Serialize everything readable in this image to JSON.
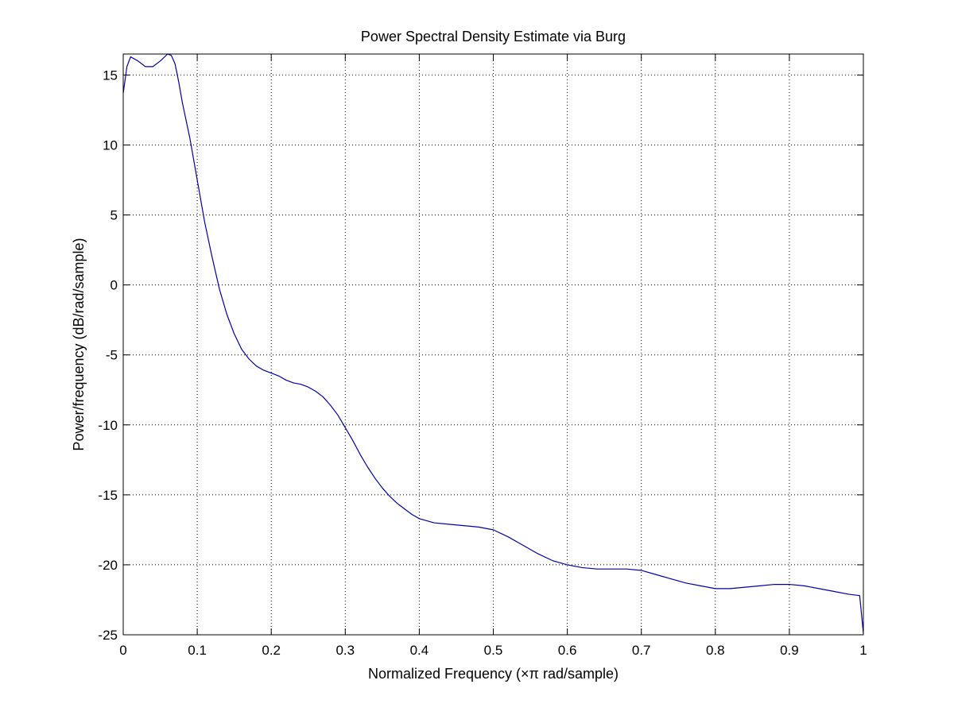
{
  "chart_data": {
    "type": "line",
    "title": "Power Spectral Density Estimate via Burg",
    "xlabel": "Normalized Frequency  (×π rad/sample)",
    "ylabel": "Power/frequency (dB/rad/sample)",
    "xlim": [
      0,
      1
    ],
    "ylim": [
      -25,
      16.5
    ],
    "xticks": [
      0,
      0.1,
      0.2,
      0.3,
      0.4,
      0.5,
      0.6,
      0.7,
      0.8,
      0.9,
      1
    ],
    "xtick_labels": [
      "0",
      "0.1",
      "0.2",
      "0.3",
      "0.4",
      "0.5",
      "0.6",
      "0.7",
      "0.8",
      "0.9",
      "1"
    ],
    "yticks": [
      -25,
      -20,
      -15,
      -10,
      -5,
      0,
      5,
      10,
      15
    ],
    "ytick_labels": [
      "-25",
      "-20",
      "-15",
      "-10",
      "-5",
      "0",
      "5",
      "10",
      "15"
    ],
    "grid": true,
    "grid_style": "dotted",
    "line_color": "#0000aa",
    "series": [
      {
        "x": [
          0,
          0.005,
          0.01,
          0.02,
          0.03,
          0.04,
          0.05,
          0.06,
          0.065,
          0.07,
          0.075,
          0.08,
          0.09,
          0.1,
          0.11,
          0.12,
          0.13,
          0.14,
          0.15,
          0.16,
          0.17,
          0.18,
          0.19,
          0.2,
          0.21,
          0.22,
          0.23,
          0.24,
          0.25,
          0.26,
          0.27,
          0.28,
          0.29,
          0.3,
          0.31,
          0.32,
          0.33,
          0.34,
          0.35,
          0.36,
          0.37,
          0.38,
          0.39,
          0.4,
          0.42,
          0.44,
          0.46,
          0.48,
          0.5,
          0.52,
          0.54,
          0.56,
          0.58,
          0.6,
          0.62,
          0.64,
          0.66,
          0.68,
          0.7,
          0.72,
          0.74,
          0.76,
          0.78,
          0.8,
          0.82,
          0.84,
          0.86,
          0.88,
          0.9,
          0.92,
          0.94,
          0.96,
          0.98,
          0.995,
          1
        ],
        "y": [
          13.7,
          15.6,
          16.3,
          16.0,
          15.6,
          15.6,
          16.0,
          16.5,
          16.4,
          15.8,
          14.5,
          13.0,
          10.5,
          7.5,
          4.5,
          2.0,
          -0.3,
          -2.1,
          -3.5,
          -4.6,
          -5.3,
          -5.8,
          -6.1,
          -6.3,
          -6.5,
          -6.8,
          -7.0,
          -7.1,
          -7.3,
          -7.6,
          -8.0,
          -8.6,
          -9.3,
          -10.2,
          -11.1,
          -12.1,
          -13.0,
          -13.8,
          -14.5,
          -15.1,
          -15.6,
          -16.0,
          -16.4,
          -16.7,
          -17.0,
          -17.1,
          -17.2,
          -17.3,
          -17.5,
          -18.0,
          -18.6,
          -19.2,
          -19.7,
          -20.0,
          -20.2,
          -20.3,
          -20.3,
          -20.3,
          -20.4,
          -20.7,
          -21.0,
          -21.3,
          -21.5,
          -21.7,
          -21.7,
          -21.6,
          -21.5,
          -21.4,
          -21.4,
          -21.5,
          -21.7,
          -21.9,
          -22.1,
          -22.2,
          -24.9
        ]
      }
    ]
  }
}
